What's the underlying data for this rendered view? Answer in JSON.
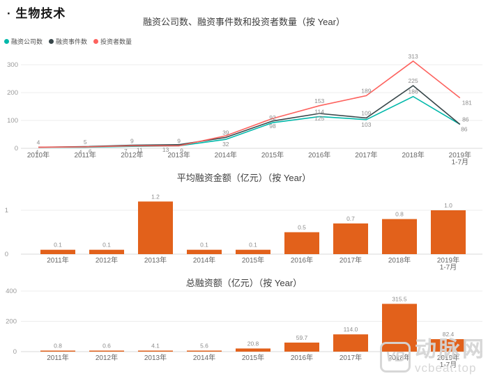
{
  "page": {
    "title": "· 生物技术"
  },
  "watermark": {
    "logo": "VB",
    "brand": "动脉网",
    "domain": "vcbeat.top"
  },
  "colors": {
    "teal": "#01B8AA",
    "dark": "#374649",
    "red": "#FD625E",
    "orange": "#E2611B",
    "grid": "#ececec",
    "axis_line": "#d9d9d9",
    "tick_text": "#999999",
    "category_text": "#666666",
    "data_label_text": "#8c8c8c"
  },
  "chart_data": [
    {
      "type": "line",
      "title": "融资公司数、融资事件数和投资者数量（按 Year）",
      "legend_position": "top-left",
      "grid": true,
      "categories": [
        "2010年",
        "2011年",
        "2012年",
        "2013年",
        "2014年",
        "2015年",
        "2016年",
        "2017年",
        "2018年",
        "2019年\n1-7月"
      ],
      "yticks": [
        0,
        100,
        200,
        300
      ],
      "ylim": [
        0,
        330
      ],
      "series": [
        {
          "name": "融资公司数",
          "color": "#01B8AA",
          "values": [
            4,
            4,
            7,
            9,
            32,
            92,
            114,
            103,
            186,
            86
          ],
          "labels": [
            "4",
            "4",
            "7",
            "9",
            "32",
            "92",
            "114",
            "103",
            "186",
            "86"
          ],
          "label_pos": [
            "below",
            "below",
            "below",
            "below",
            "below",
            "above",
            "above",
            "below",
            "above",
            "below"
          ],
          "label_dx": [
            -2,
            -7,
            -9,
            4,
            0,
            0,
            0,
            0,
            0,
            6
          ]
        },
        {
          "name": "融资事件数",
          "color": "#374649",
          "values": [
            4,
            6,
            11,
            13,
            39,
            98,
            125,
            109,
            225,
            86
          ],
          "labels": [
            null,
            "6",
            "11",
            "13",
            "39",
            "98",
            "125",
            "109",
            "225",
            "86"
          ],
          "label_pos": [
            null,
            "below",
            "below",
            "below",
            "above",
            "below",
            "below",
            "above",
            "above",
            "above"
          ],
          "label_dx": [
            0,
            7,
            11,
            -19,
            0,
            0,
            0,
            0,
            0,
            8
          ]
        },
        {
          "name": "投资者数量",
          "color": "#FD625E",
          "values": [
            4,
            5,
            9,
            9,
            45,
            107,
            153,
            189,
            313,
            181
          ],
          "labels": [
            "4",
            "5",
            "9",
            "9",
            null,
            null,
            "153",
            "189",
            "313",
            "181"
          ],
          "label_pos": [
            "above",
            "above",
            "above",
            "above",
            null,
            null,
            "above",
            "above",
            "above",
            "below"
          ],
          "label_dx": [
            0,
            0,
            0,
            0,
            0,
            0,
            0,
            0,
            0,
            10
          ]
        }
      ]
    },
    {
      "type": "bar",
      "title": "平均融资金额（亿元）（按 Year）",
      "grid": true,
      "categories": [
        "2011年",
        "2012年",
        "2013年",
        "2014年",
        "2015年",
        "2016年",
        "2017年",
        "2018年",
        "2019年\n1-7月"
      ],
      "yticks": [
        0,
        1
      ],
      "ylim": [
        0,
        1.35
      ],
      "values": [
        0.1,
        0.1,
        1.2,
        0.1,
        0.1,
        0.5,
        0.7,
        0.8,
        1.0
      ],
      "labels": [
        "0.1",
        "0.1",
        "1.2",
        "0.1",
        "0.1",
        "0.5",
        "0.7",
        "0.8",
        "1.0"
      ]
    },
    {
      "type": "bar",
      "title": "总融资额（亿元）（按 Year）",
      "grid": true,
      "categories": [
        "2011年",
        "2012年",
        "2013年",
        "2014年",
        "2015年",
        "2016年",
        "2017年",
        "2018年",
        "2019年\n1-7月"
      ],
      "yticks": [
        0,
        200,
        400
      ],
      "ylim": [
        0,
        430
      ],
      "values": [
        0.8,
        0.6,
        4.1,
        5.6,
        20.8,
        59.7,
        114.0,
        315.5,
        82.4
      ],
      "labels": [
        "0.8",
        "0.6",
        "4.1",
        "5.6",
        "20.8",
        "59.7",
        "114.0",
        "315.5",
        "82.4"
      ]
    }
  ]
}
